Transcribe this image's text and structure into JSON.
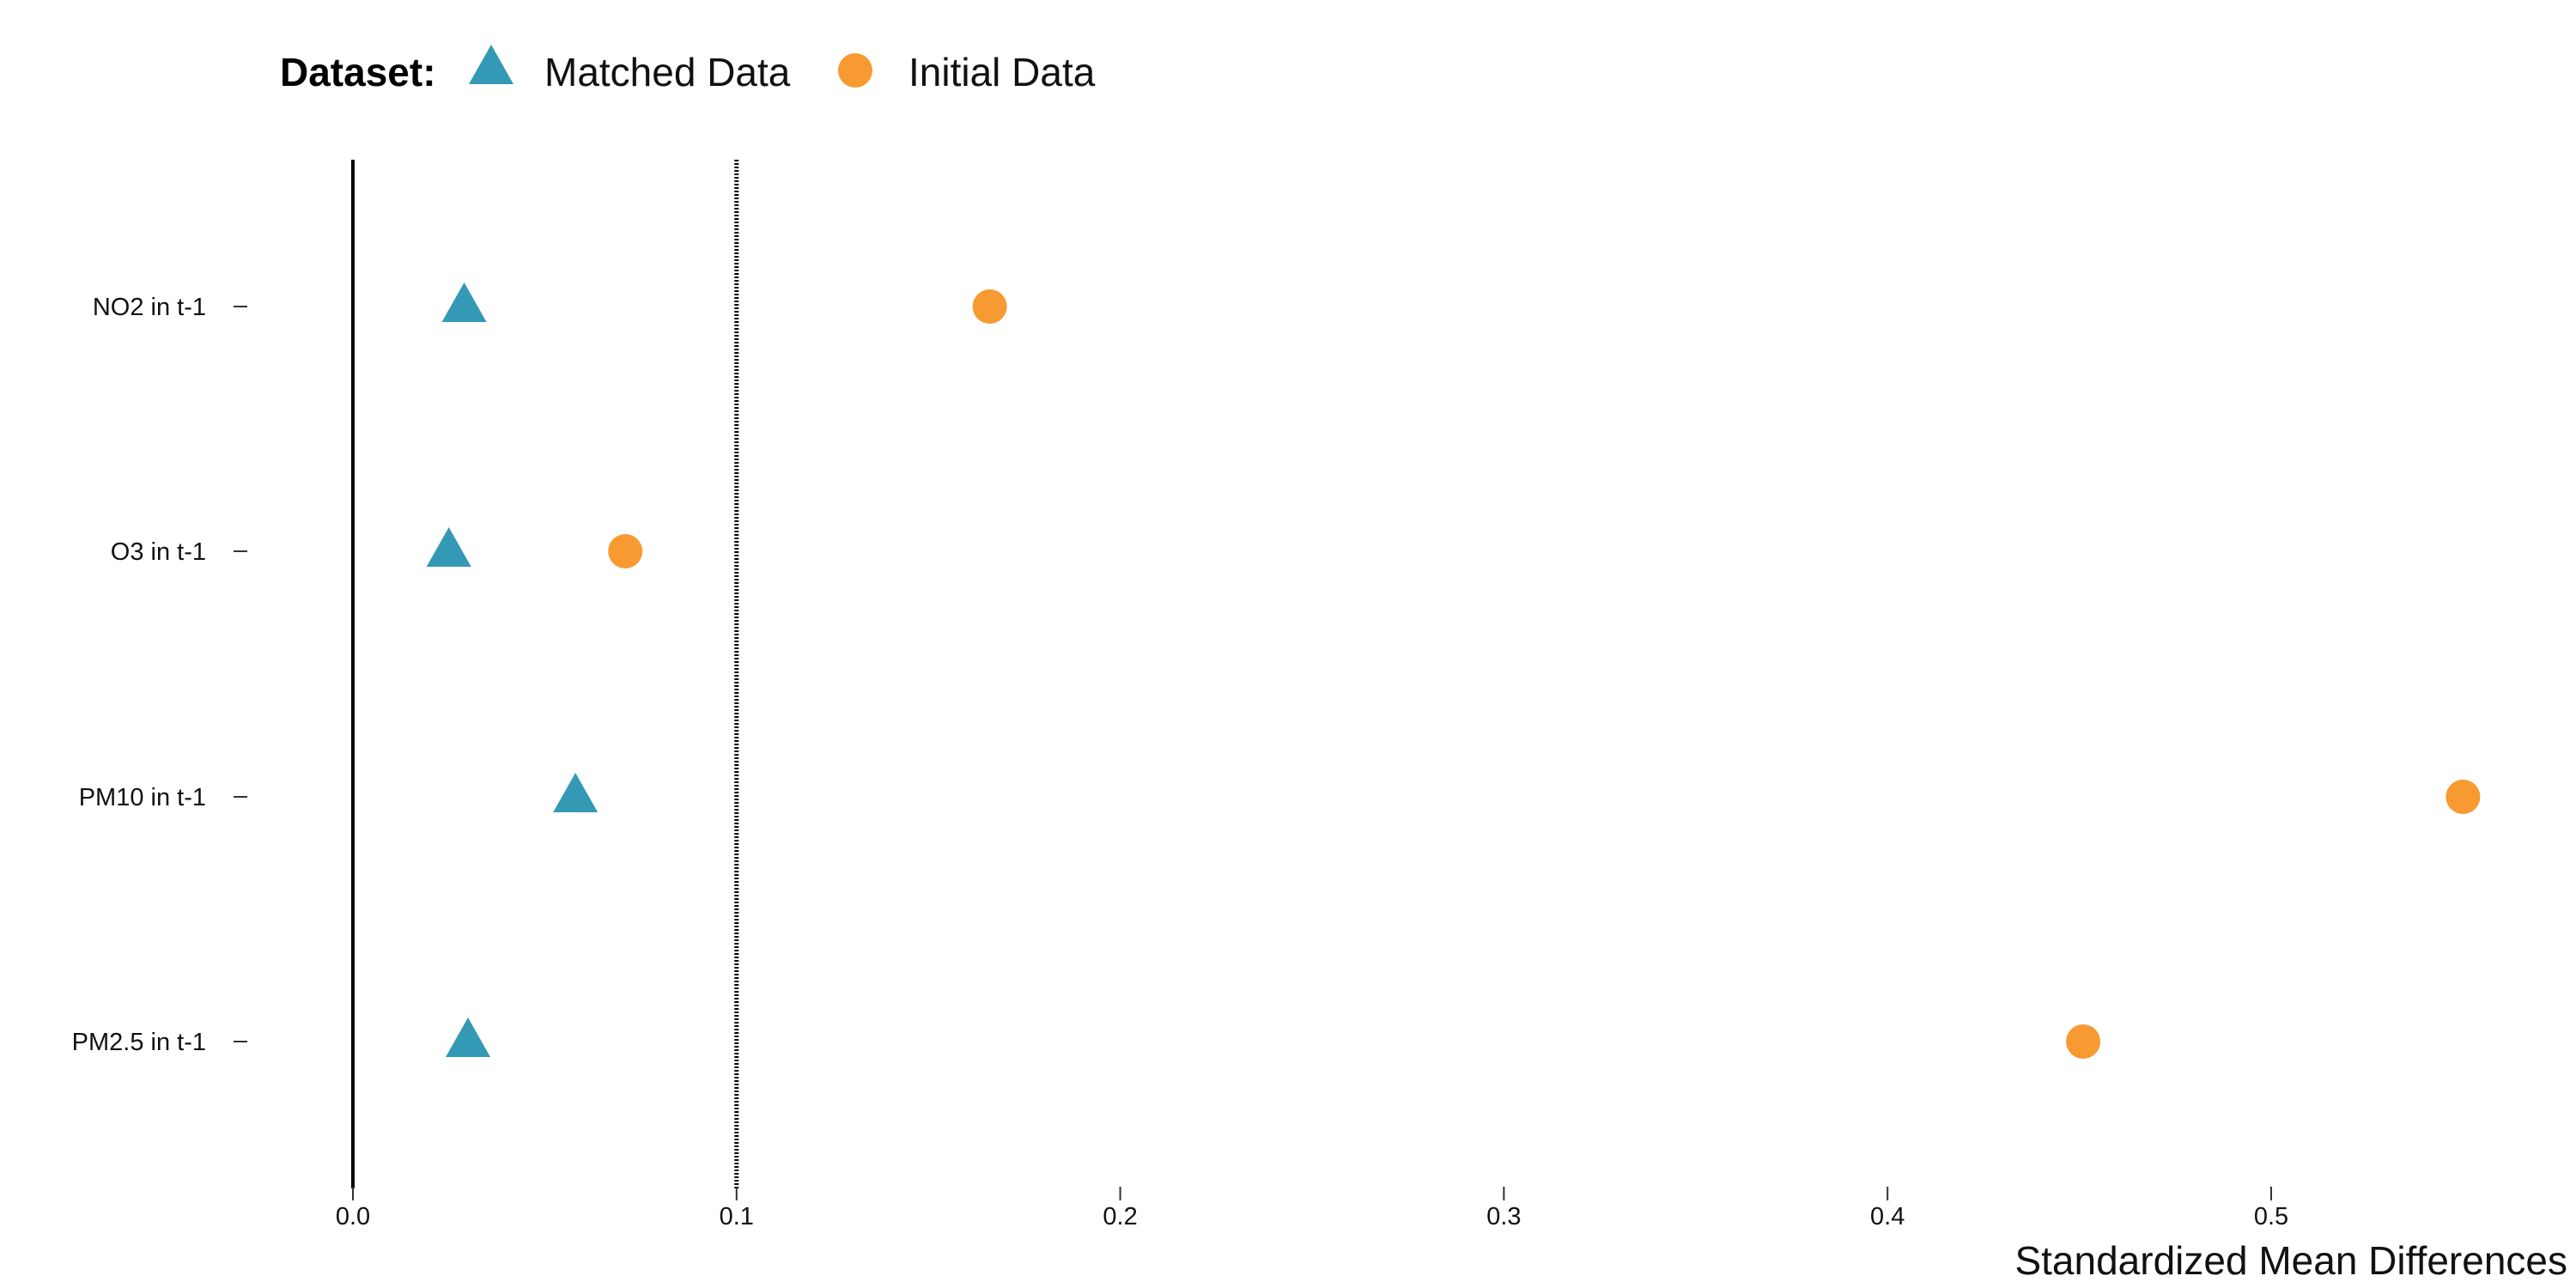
{
  "chart_data": {
    "type": "scatter",
    "title": "",
    "xlabel": "Standardized Mean Differences",
    "ylabel": "",
    "xlim": [
      0,
      0.55
    ],
    "x_ticks": [
      0,
      0.1,
      0.2,
      0.3,
      0.4,
      0.5
    ],
    "x_tick_labels": [
      "0.0",
      "0.1",
      "0.2",
      "0.3",
      "0.4",
      "0.5"
    ],
    "categories": [
      "NO2 in t-1",
      "O3 in t-1",
      "PM10 in t-1",
      "PM2.5 in t-1"
    ],
    "reference_lines": [
      {
        "x": 0,
        "style": "solid"
      },
      {
        "x": 0.1,
        "style": "dotted"
      }
    ],
    "legend": {
      "title": "Dataset:",
      "position": "top-left"
    },
    "grid": false,
    "series": [
      {
        "name": "Matched Data",
        "marker": "triangle",
        "color": "#3399b5",
        "values": [
          0.029,
          0.025,
          0.058,
          0.03
        ]
      },
      {
        "name": "Initial Data",
        "marker": "circle",
        "color": "#f79a32",
        "values": [
          0.166,
          0.071,
          0.55,
          0.451
        ]
      }
    ]
  }
}
